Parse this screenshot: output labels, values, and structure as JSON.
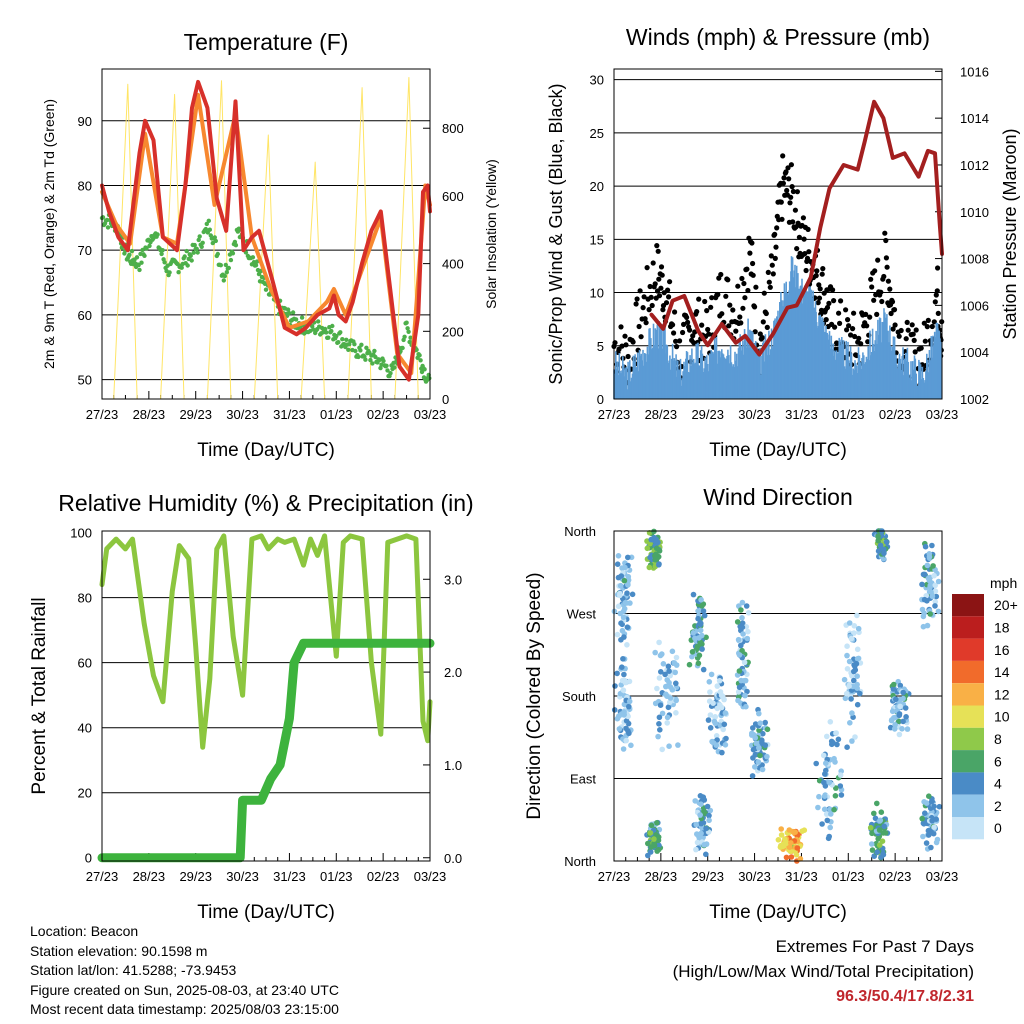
{
  "chart_data": [
    {
      "type": "line",
      "title": "Temperature (F)",
      "xlabel": "Time (Day/UTC)",
      "ylabel": "2m & 9m T (Red, Orange) & 2m Td (Green)",
      "y2label": "Solar Insolation (Yellow)",
      "x_ticks": [
        "27/23",
        "28/23",
        "29/23",
        "30/23",
        "31/23",
        "01/23",
        "02/23",
        "03/23"
      ],
      "ylim": [
        47,
        98
      ],
      "y_ticks": [
        50,
        60,
        70,
        80,
        90
      ],
      "y2lim": [
        0,
        975
      ],
      "y2_ticks": [
        0,
        200,
        400,
        600,
        800
      ],
      "series": [
        {
          "color": "#d7302a",
          "x": [
            0,
            0.15,
            0.35,
            0.55,
            0.8,
            0.92,
            1.1,
            1.3,
            1.6,
            1.78,
            1.92,
            2.05,
            2.25,
            2.45,
            2.65,
            2.85,
            3.02,
            3.2,
            3.35,
            3.65,
            3.9,
            4.15,
            4.35,
            4.6,
            4.85,
            4.95,
            5.05,
            5.2,
            5.35,
            5.55,
            5.75,
            5.95,
            6.15,
            6.35,
            6.55,
            6.75,
            6.85,
            6.95,
            7.0
          ],
          "values": [
            80,
            76,
            72,
            70,
            85,
            90,
            87,
            72,
            70,
            80,
            92,
            96,
            92,
            78,
            73,
            93,
            70,
            72,
            73,
            65,
            58,
            57,
            58,
            60,
            61,
            63,
            60,
            59,
            62,
            68,
            73,
            76,
            64,
            52,
            50,
            60,
            79,
            80,
            76
          ]
        },
        {
          "color": "#f7882f",
          "x": [
            0,
            0.3,
            0.6,
            0.92,
            1.3,
            1.6,
            2.05,
            2.4,
            2.85,
            3.2,
            3.6,
            4.0,
            4.4,
            4.8,
            4.95,
            5.2,
            5.5,
            5.95,
            6.3,
            6.6,
            6.9,
            7.0
          ],
          "values": [
            79,
            74,
            71,
            88,
            72,
            71,
            94,
            77,
            91,
            72,
            64,
            58,
            59,
            62,
            64,
            60,
            66,
            75,
            54,
            51,
            80,
            77
          ]
        },
        {
          "color": "#4daf4a",
          "x": [
            0,
            0.3,
            0.55,
            0.8,
            1.1,
            1.4,
            1.7,
            2.0,
            2.3,
            2.6,
            2.9,
            3.2,
            3.5,
            3.8,
            4.1,
            4.4,
            4.7,
            5.0,
            5.3,
            5.6,
            5.9,
            6.2,
            6.5,
            6.8,
            7.0
          ],
          "values": [
            75,
            74,
            69,
            68,
            73,
            67,
            68,
            70,
            74,
            66,
            73,
            69,
            64,
            61,
            59,
            58,
            58,
            57,
            55,
            54,
            53,
            51,
            58,
            53,
            49
          ]
        },
        {
          "color": "#ffe566",
          "axis": "right",
          "x": [
            0.25,
            0.55,
            0.75,
            1.25,
            1.55,
            1.75,
            2.25,
            2.55,
            2.75,
            3.25,
            3.55,
            3.75,
            4.25,
            4.55,
            4.75,
            5.25,
            5.55,
            5.75,
            6.25,
            6.55,
            6.75
          ],
          "values": [
            0,
            930,
            0,
            0,
            900,
            0,
            0,
            940,
            0,
            0,
            780,
            0,
            0,
            700,
            0,
            0,
            920,
            0,
            0,
            950,
            0
          ]
        }
      ]
    },
    {
      "type": "line",
      "title": "Winds (mph) & Pressure (mb)",
      "xlabel": "Time (Day/UTC)",
      "ylabel": "Sonic/Prop Wind & Gust (Blue, Black)",
      "y2label": "Station Pressure (Maroon)",
      "x_ticks": [
        "27/23",
        "28/23",
        "29/23",
        "30/23",
        "31/23",
        "01/23",
        "02/23",
        "03/23"
      ],
      "ylim": [
        0,
        31
      ],
      "y_ticks": [
        0,
        5,
        10,
        15,
        20,
        25,
        30
      ],
      "y2lim": [
        1002,
        1016.1
      ],
      "y2_ticks": [
        1002,
        1004,
        1006,
        1008,
        1010,
        1012,
        1014,
        1016
      ],
      "series": [
        {
          "color": "#5b9bd5",
          "x": [
            0,
            0.3,
            0.6,
            0.9,
            1.1,
            1.4,
            1.7,
            2.0,
            2.3,
            2.6,
            2.9,
            3.1,
            3.4,
            3.6,
            3.8,
            4.0,
            4.2,
            4.4,
            4.6,
            4.9,
            5.2,
            5.5,
            5.8,
            6.0,
            6.3,
            6.6,
            6.9,
            7.0
          ],
          "values": [
            3,
            2,
            4,
            6,
            5,
            2,
            4,
            3,
            5,
            4,
            6,
            3,
            6,
            9,
            12,
            10,
            9,
            7,
            5,
            4,
            3,
            5,
            7,
            4,
            3,
            2,
            6,
            3
          ]
        },
        {
          "color": "#000000",
          "x": [
            0,
            0.3,
            0.6,
            0.9,
            1.1,
            1.4,
            1.7,
            2.0,
            2.3,
            2.6,
            2.9,
            3.1,
            3.4,
            3.6,
            3.8,
            4.0,
            4.2,
            4.4,
            4.6,
            4.9,
            5.2,
            5.5,
            5.8,
            6.0,
            6.3,
            6.6,
            6.9,
            7.0
          ],
          "values": [
            5,
            4,
            8,
            12,
            10,
            4,
            7,
            6,
            10,
            8,
            14,
            5,
            12,
            20,
            19,
            15,
            13,
            11,
            8,
            6,
            5,
            9,
            13,
            7,
            4,
            4,
            10,
            5
          ]
        },
        {
          "color": "#a31f1f",
          "axis": "right",
          "x": [
            0.8,
            1.05,
            1.25,
            1.5,
            1.8,
            2.0,
            2.3,
            2.6,
            2.8,
            3.1,
            3.4,
            3.7,
            3.9,
            4.2,
            4.4,
            4.6,
            4.9,
            5.2,
            5.35,
            5.55,
            5.75,
            5.95,
            6.2,
            6.5,
            6.7,
            6.85,
            6.95,
            7.0
          ],
          "values": [
            1005.6,
            1005.0,
            1006.2,
            1006.4,
            1004.9,
            1004.3,
            1005.2,
            1004.4,
            1004.7,
            1003.9,
            1004.8,
            1005.9,
            1006.0,
            1007.2,
            1009.3,
            1011.0,
            1012.0,
            1011.8,
            1013.0,
            1014.7,
            1014.0,
            1012.3,
            1012.5,
            1011.5,
            1012.6,
            1012.5,
            1009.5,
            1008.2
          ]
        }
      ]
    },
    {
      "type": "line",
      "title": "Relative Humidity (%) & Precipitation (in)",
      "xlabel": "Time (Day/UTC)",
      "ylabel": "Percent & Total Rainfall",
      "x_ticks": [
        "27/23",
        "28/23",
        "29/23",
        "30/23",
        "31/23",
        "01/23",
        "02/23",
        "03/23"
      ],
      "ylim": [
        -1,
        100.5
      ],
      "y_ticks": [
        0,
        20,
        40,
        60,
        80,
        100
      ],
      "y2lim": [
        -0.035,
        3.52
      ],
      "y2_ticks": [
        "0.0",
        "1.0",
        "2.0",
        "3.0"
      ],
      "series": [
        {
          "color": "#8cc63f",
          "x": [
            0,
            0.1,
            0.3,
            0.5,
            0.65,
            0.9,
            1.1,
            1.3,
            1.5,
            1.65,
            1.85,
            2.0,
            2.15,
            2.3,
            2.45,
            2.6,
            2.8,
            3.0,
            3.2,
            3.4,
            3.55,
            3.75,
            3.9,
            4.1,
            4.3,
            4.45,
            4.6,
            4.75,
            5.0,
            5.15,
            5.3,
            5.55,
            5.75,
            5.95,
            6.1,
            6.3,
            6.5,
            6.7,
            6.85,
            6.95,
            7.0
          ],
          "values": [
            84,
            95,
            98,
            95,
            98,
            72,
            56,
            48,
            82,
            96,
            92,
            65,
            34,
            55,
            95,
            99,
            68,
            50,
            98,
            99,
            95,
            98,
            97,
            98,
            90,
            98,
            93,
            99,
            62,
            97,
            99,
            98,
            60,
            38,
            97,
            98,
            99,
            98,
            42,
            36,
            48
          ]
        },
        {
          "color": "#3db33d",
          "axis": "right",
          "x": [
            0,
            2.95,
            3.0,
            3.4,
            3.6,
            3.8,
            4.0,
            4.1,
            4.3,
            7.0
          ],
          "values": [
            0,
            0,
            0.62,
            0.62,
            0.85,
            1.0,
            1.5,
            2.1,
            2.31,
            2.31
          ]
        }
      ]
    },
    {
      "type": "scatter",
      "title": "Wind Direction",
      "xlabel": "Time (Day/UTC)",
      "ylabel": "Direction (Colored By Speed)",
      "x_ticks": [
        "27/23",
        "28/23",
        "29/23",
        "30/23",
        "31/23",
        "01/23",
        "02/23",
        "03/23"
      ],
      "y_ticks": [
        "North",
        "East",
        "South",
        "West",
        "North"
      ],
      "ylim": [
        0,
        360
      ],
      "legend_title": "mph",
      "legend_labels": [
        "0",
        "2",
        "4",
        "6",
        "8",
        "10",
        "12",
        "14",
        "16",
        "18",
        "20+"
      ],
      "legend_colors": [
        "#c6e4f7",
        "#8fc4ea",
        "#4a8bc6",
        "#4aa567",
        "#8fc94a",
        "#e6e157",
        "#f9b046",
        "#f16b2b",
        "#e03a2a",
        "#bb1e1e",
        "#8b1414"
      ],
      "clusters": [
        {
          "x": 0.2,
          "dir": 290,
          "spread_x": 0.2,
          "spread_d": 60,
          "speed": 3
        },
        {
          "x": 0.2,
          "dir": 170,
          "spread_x": 0.2,
          "spread_d": 60,
          "speed": 2
        },
        {
          "x": 0.85,
          "dir": 340,
          "spread_x": 0.15,
          "spread_d": 25,
          "speed": 6
        },
        {
          "x": 0.85,
          "dir": 25,
          "spread_x": 0.15,
          "spread_d": 20,
          "speed": 5
        },
        {
          "x": 1.15,
          "dir": 180,
          "spread_x": 0.3,
          "spread_d": 60,
          "speed": 2
        },
        {
          "x": 1.8,
          "dir": 250,
          "spread_x": 0.2,
          "spread_d": 45,
          "speed": 4
        },
        {
          "x": 1.9,
          "dir": 40,
          "spread_x": 0.2,
          "spread_d": 35,
          "speed": 3
        },
        {
          "x": 2.2,
          "dir": 160,
          "spread_x": 0.25,
          "spread_d": 50,
          "speed": 2
        },
        {
          "x": 2.75,
          "dir": 220,
          "spread_x": 0.15,
          "spread_d": 80,
          "speed": 3
        },
        {
          "x": 3.1,
          "dir": 130,
          "spread_x": 0.2,
          "spread_d": 40,
          "speed": 3
        },
        {
          "x": 3.8,
          "dir": 20,
          "spread_x": 0.3,
          "spread_d": 22,
          "speed": 11
        },
        {
          "x": 4.6,
          "dir": 90,
          "spread_x": 0.3,
          "spread_d": 70,
          "speed": 3
        },
        {
          "x": 5.1,
          "dir": 200,
          "spread_x": 0.2,
          "spread_d": 80,
          "speed": 2
        },
        {
          "x": 5.65,
          "dir": 30,
          "spread_x": 0.2,
          "spread_d": 35,
          "speed": 5
        },
        {
          "x": 5.7,
          "dir": 345,
          "spread_x": 0.15,
          "spread_d": 20,
          "speed": 5
        },
        {
          "x": 6.1,
          "dir": 170,
          "spread_x": 0.25,
          "spread_d": 35,
          "speed": 3
        },
        {
          "x": 6.75,
          "dir": 300,
          "spread_x": 0.25,
          "spread_d": 55,
          "speed": 3
        },
        {
          "x": 6.75,
          "dir": 45,
          "spread_x": 0.2,
          "spread_d": 40,
          "speed": 3
        }
      ]
    }
  ],
  "info": {
    "location": "Location: Beacon",
    "elevation": "Station elevation: 90.1598 m",
    "latlon": "Station lat/lon: 41.5288; -73.9453",
    "created": "Figure created on Sun, 2025-08-03, at 23:40 UTC",
    "timestamp": "Most recent data timestamp: 2025/08/03 23:15:00"
  },
  "extremes": {
    "heading": "Extremes For Past 7 Days",
    "subheading": "(High/Low/Max Wind/Total Precipitation)",
    "values": "96.3/50.4/17.8/2.31"
  }
}
